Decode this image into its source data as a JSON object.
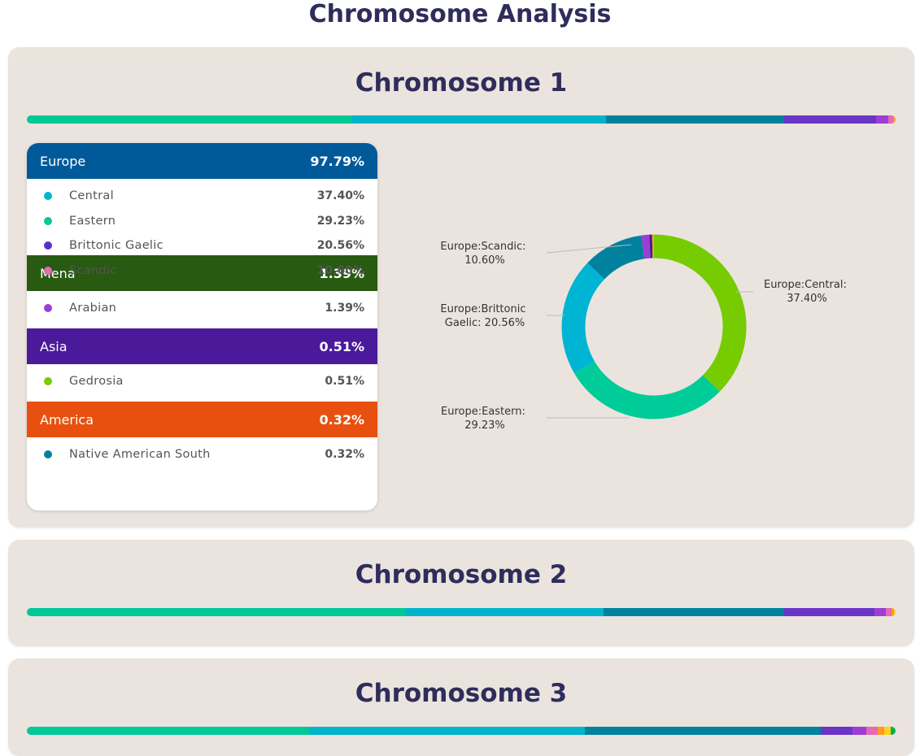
{
  "page": {
    "title": "Chromosome Analysis"
  },
  "chromosomes": [
    {
      "title": "Chromosome 1",
      "bar": [
        {
          "pct": 37.4,
          "color": "#00c896"
        },
        {
          "pct": 29.23,
          "color": "#00b4cc"
        },
        {
          "pct": 20.56,
          "color": "#00829e"
        },
        {
          "pct": 10.6,
          "color": "#6a35c7"
        },
        {
          "pct": 1.39,
          "color": "#9b3fd4"
        },
        {
          "pct": 0.51,
          "color": "#e36ab5"
        },
        {
          "pct": 0.32,
          "color": "#ff9a1f"
        }
      ],
      "groups": [
        {
          "name": "Europe",
          "pct": "97.79%",
          "color": "#005a9a",
          "items": [
            {
              "name": "Central",
              "pct": "37.40%",
              "color": "#00b4cc"
            },
            {
              "name": "Eastern",
              "pct": "29.23%",
              "color": "#00c896"
            },
            {
              "name": "Brittonic Gaelic",
              "pct": "20.56%",
              "color": "#5b2fc7"
            },
            {
              "name": "Scandic",
              "pct": "10.60%",
              "color": "#e36ab5"
            }
          ]
        },
        {
          "name": "Mena",
          "pct": "1.39%",
          "color": "#285a12",
          "items": [
            {
              "name": "Arabian",
              "pct": "1.39%",
              "color": "#9b3fd4"
            }
          ]
        },
        {
          "name": "Asia",
          "pct": "0.51%",
          "color": "#4a1a9a",
          "items": [
            {
              "name": "Gedrosia",
              "pct": "0.51%",
              "color": "#76cc00"
            }
          ]
        },
        {
          "name": "America",
          "pct": "0.32%",
          "color": "#e8500f",
          "items": [
            {
              "name": "Native American South",
              "pct": "0.32%",
              "color": "#00829e"
            }
          ]
        }
      ],
      "donut": {
        "slices": [
          {
            "label": "Europe:Central",
            "value": 37.4,
            "color": "#76cc00"
          },
          {
            "label": "Europe:Eastern",
            "value": 29.23,
            "color": "#00cc99"
          },
          {
            "label": "Europe:Brittonic Gaelic",
            "value": 20.56,
            "color": "#00b4d4"
          },
          {
            "label": "Europe:Scandic",
            "value": 10.6,
            "color": "#00829e"
          },
          {
            "label": "Mena:Arabian",
            "value": 1.39,
            "color": "#9b3fd4"
          },
          {
            "label": "Asia:Gedrosia",
            "value": 0.51,
            "color": "#4a1a9a"
          },
          {
            "label": "America:Native American South",
            "value": 0.32,
            "color": "#e8b200"
          }
        ],
        "labels": {
          "central": [
            "Europe:Central:",
            "37.40%"
          ],
          "eastern": [
            "Europe:Eastern:",
            "29.23%"
          ],
          "brittonic": [
            "Europe:Brittonic",
            "Gaelic: 20.56%"
          ],
          "scandic": [
            "Europe:Scandic:",
            "10.60%"
          ]
        }
      }
    },
    {
      "title": "Chromosome 2",
      "bar": [
        {
          "pct": 43.6,
          "color": "#00c896"
        },
        {
          "pct": 22.8,
          "color": "#00b4cc"
        },
        {
          "pct": 20.8,
          "color": "#00829e"
        },
        {
          "pct": 10.4,
          "color": "#6a35c7"
        },
        {
          "pct": 1.3,
          "color": "#9b3fd4"
        },
        {
          "pct": 0.6,
          "color": "#e36ab5"
        },
        {
          "pct": 0.3,
          "color": "#ff9a1f"
        },
        {
          "pct": 0.2,
          "color": "#ffd21f"
        }
      ]
    },
    {
      "title": "Chromosome 3",
      "bar": [
        {
          "pct": 32.5,
          "color": "#00c896"
        },
        {
          "pct": 31.7,
          "color": "#00b4cc"
        },
        {
          "pct": 27.2,
          "color": "#00829e"
        },
        {
          "pct": 3.6,
          "color": "#6a35c7"
        },
        {
          "pct": 1.6,
          "color": "#9b3fd4"
        },
        {
          "pct": 1.3,
          "color": "#e36ab5"
        },
        {
          "pct": 0.8,
          "color": "#ff9a1f"
        },
        {
          "pct": 0.7,
          "color": "#ffd21f"
        },
        {
          "pct": 0.6,
          "color": "#00b050"
        }
      ]
    }
  ]
}
